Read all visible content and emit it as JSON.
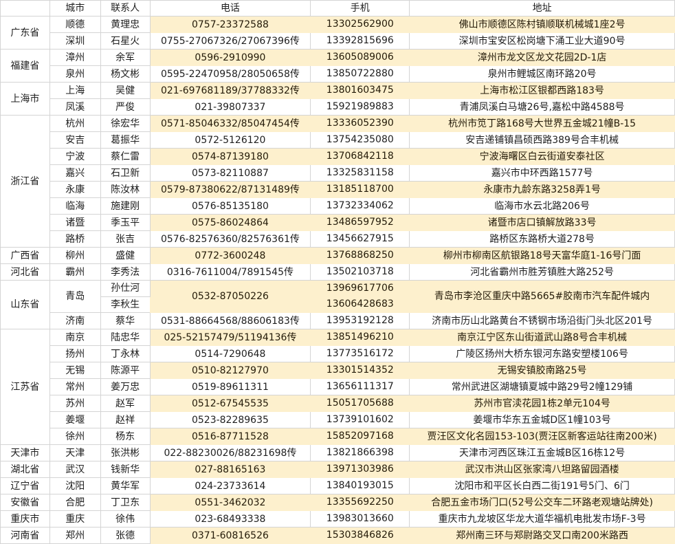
{
  "colors": {
    "highlight": "#fdf0cd",
    "grid": "#d4d4d4"
  },
  "headers": {
    "province": "",
    "city": "城市",
    "contact": "联系人",
    "phone": "电话",
    "mobile": "手机",
    "address": "地址"
  },
  "provinces": [
    {
      "name": "广东省",
      "cities": [
        {
          "city": "顺德",
          "contacts": [
            "黄理忠"
          ],
          "phone": "0757-23372588",
          "mobiles": [
            "13302562900"
          ],
          "address": "佛山市顺德区陈村镇顺联机械城1座2号",
          "highlight": true
        },
        {
          "city": "深圳",
          "contacts": [
            "石星火"
          ],
          "phone": "0755-27067326/27067396传",
          "mobiles": [
            "13392815696"
          ],
          "address": "深圳市宝安区松岗塘下涌工业大道90号",
          "highlight": false
        }
      ]
    },
    {
      "name": "福建省",
      "cities": [
        {
          "city": "漳州",
          "contacts": [
            "余军"
          ],
          "phone": "0596-2910990",
          "mobiles": [
            "13605089006"
          ],
          "address": "漳州市龙文区龙文花园2D-1店",
          "highlight": true
        },
        {
          "city": "泉州",
          "contacts": [
            "杨文彬"
          ],
          "phone": "0595-22470958/28050658传",
          "mobiles": [
            "13850722880"
          ],
          "address": "泉州市鲤城区南环路20号",
          "highlight": false
        }
      ]
    },
    {
      "name": "上海市",
      "cities": [
        {
          "city": "上海",
          "contacts": [
            "吴健"
          ],
          "phone": "021-697681189/37788332传",
          "mobiles": [
            "13801603475"
          ],
          "address": "上海市松江区银都西路183号",
          "highlight": true
        },
        {
          "city": "凤溪",
          "contacts": [
            "严俊"
          ],
          "phone": "021-39807337",
          "mobiles": [
            "15921989883"
          ],
          "address": "青浦凤溪白马塘26号,嘉松中路4588号",
          "highlight": false
        }
      ]
    },
    {
      "name": "浙江省",
      "cities": [
        {
          "city": "杭州",
          "contacts": [
            "徐宏华"
          ],
          "phone": "0571-85046332/85047454传",
          "mobiles": [
            "13336052390"
          ],
          "address": "杭州市笕丁路168号大世界五金城21幢B-15",
          "highlight": true
        },
        {
          "city": "安吉",
          "contacts": [
            "葛振华"
          ],
          "phone": "0572-5126120",
          "mobiles": [
            "13754235080"
          ],
          "address": "安吉递铺镇昌硕西路389号合丰机械",
          "highlight": false
        },
        {
          "city": "宁波",
          "contacts": [
            "蔡仁雷"
          ],
          "phone": "0574-87139180",
          "mobiles": [
            "13706842118"
          ],
          "address": "宁波海曙区白云街道安泰社区",
          "highlight": true
        },
        {
          "city": "嘉兴",
          "contacts": [
            "石卫新"
          ],
          "phone": "0573-82110887",
          "mobiles": [
            "13325831158"
          ],
          "address": "嘉兴市中环西路1577号",
          "highlight": false
        },
        {
          "city": "永康",
          "contacts": [
            "陈汝林"
          ],
          "phone": "0579-87380622/87131489传",
          "mobiles": [
            "13185118700"
          ],
          "address": "永康市九龄东路3258弄1号",
          "highlight": true
        },
        {
          "city": "临海",
          "contacts": [
            "施建刚"
          ],
          "phone": "0576-85135180",
          "mobiles": [
            "13732334062"
          ],
          "address": "临海市水云北路206号",
          "highlight": false
        },
        {
          "city": "诸暨",
          "contacts": [
            "季玉平"
          ],
          "phone": "0575-86024864",
          "mobiles": [
            "13486597952"
          ],
          "address": "诸暨市店口镇解放路33号",
          "highlight": true
        },
        {
          "city": "路桥",
          "contacts": [
            "张吉"
          ],
          "phone": "0576-82576360/82576361传",
          "mobiles": [
            "13456627915"
          ],
          "address": "路桥区东路桥大道278号",
          "highlight": false
        }
      ]
    },
    {
      "name": "广西省",
      "cities": [
        {
          "city": "柳州",
          "contacts": [
            "盛健"
          ],
          "phone": "0772-3600248",
          "mobiles": [
            "13768868250"
          ],
          "address": "柳州市柳南区航银路18号天富华庭1-16号门面",
          "highlight": true
        }
      ]
    },
    {
      "name": "河北省",
      "cities": [
        {
          "city": "霸州",
          "contacts": [
            "李秀法"
          ],
          "phone": "0316-7611004/7891545传",
          "mobiles": [
            "13502103718"
          ],
          "address": "河北省霸州市胜芳镇胜大路252号",
          "highlight": false
        }
      ]
    },
    {
      "name": "山东省",
      "cities": [
        {
          "city": "青岛",
          "contacts": [
            "孙仕河",
            "李秋生"
          ],
          "phone": "0532-87050226",
          "mobiles": [
            "13969617706",
            "13606428683"
          ],
          "address": "青岛市李沧区重庆中路5665#胶南市汽车配件城内",
          "highlight": true
        },
        {
          "city": "济南",
          "contacts": [
            "蔡华"
          ],
          "phone": "0531-88664568/88606183传",
          "mobiles": [
            "13953192128"
          ],
          "address": "济南市历山北路黄台不锈钢市场沿街门头北区201号",
          "highlight": false
        }
      ]
    },
    {
      "name": "江苏省",
      "cities": [
        {
          "city": "南京",
          "contacts": [
            "陆忠华"
          ],
          "phone": "025-52157479/51194136传",
          "mobiles": [
            "13851496210"
          ],
          "address": "南京江宁区东山街道武山路8号合丰机械",
          "highlight": true
        },
        {
          "city": "扬州",
          "contacts": [
            "丁永林"
          ],
          "phone": "0514-7290648",
          "mobiles": [
            "13773516172"
          ],
          "address": "广陵区扬州大桥东银河东路安塑楼106号",
          "highlight": false
        },
        {
          "city": "无锡",
          "contacts": [
            "陈源平"
          ],
          "phone": "0510-82127970",
          "mobiles": [
            "13301514352"
          ],
          "address": "无锡安镇胶南路25号",
          "highlight": true
        },
        {
          "city": "常州",
          "contacts": [
            "姜万忠"
          ],
          "phone": "0519-89611311",
          "mobiles": [
            "13656111317"
          ],
          "address": "常州武进区湖塘镇夏城中路29号2幢129铺",
          "highlight": false
        },
        {
          "city": "苏州",
          "contacts": [
            "赵军"
          ],
          "phone": "0512-67545535",
          "mobiles": [
            "15051705688"
          ],
          "address": "苏州市官渎花园1栋2单元104号",
          "highlight": true
        },
        {
          "city": "姜堰",
          "contacts": [
            "赵祥"
          ],
          "phone": "0523-82289635",
          "mobiles": [
            "13739101602"
          ],
          "address": "姜堰市华东五金城D区1幢103号",
          "highlight": false
        },
        {
          "city": "徐州",
          "contacts": [
            "杨东"
          ],
          "phone": "0516-87711528",
          "mobiles": [
            "15852097168"
          ],
          "address": "贾汪区文化名园153-103(贾汪区新客运站往南200米)",
          "highlight": true
        }
      ]
    },
    {
      "name": "天津市",
      "cities": [
        {
          "city": "天津",
          "contacts": [
            "张洪彬"
          ],
          "phone": "022-88230026/88231698传",
          "mobiles": [
            "13821866398"
          ],
          "address": "天津市河西区珠江五金城B区16栋12号",
          "highlight": false
        }
      ]
    },
    {
      "name": "湖北省",
      "cities": [
        {
          "city": "武汉",
          "contacts": [
            "钱新华"
          ],
          "phone": "027-88165163",
          "mobiles": [
            "13971303986"
          ],
          "address": "武汉市洪山区张家湾八坦路留园酒楼",
          "highlight": true
        }
      ]
    },
    {
      "name": "辽宁省",
      "cities": [
        {
          "city": "沈阳",
          "contacts": [
            "黄华军"
          ],
          "phone": "024-23733614",
          "mobiles": [
            "13840193015"
          ],
          "address": "沈阳市和平区长白西二街191号5门、6门",
          "highlight": false
        }
      ]
    },
    {
      "name": "安徽省",
      "cities": [
        {
          "city": "合肥",
          "contacts": [
            "丁卫东"
          ],
          "phone": "0551-3462032",
          "mobiles": [
            "13355692250"
          ],
          "address": "合肥五金市场门口(52号公交车二环路老观塘站牌处)",
          "highlight": true
        }
      ]
    },
    {
      "name": "重庆市",
      "cities": [
        {
          "city": "重庆",
          "contacts": [
            "徐伟"
          ],
          "phone": "023-68493338",
          "mobiles": [
            "13983013660"
          ],
          "address": "重庆市九龙坡区华龙大道华福机电批发市场F-3号",
          "highlight": false
        }
      ]
    },
    {
      "name": "河南省",
      "cities": [
        {
          "city": "郑州",
          "contacts": [
            "张德"
          ],
          "phone": "0371-60816526",
          "mobiles": [
            "15303846826"
          ],
          "address": "郑州南三环与郑尉路交叉口南200米路西",
          "highlight": true
        }
      ]
    }
  ]
}
